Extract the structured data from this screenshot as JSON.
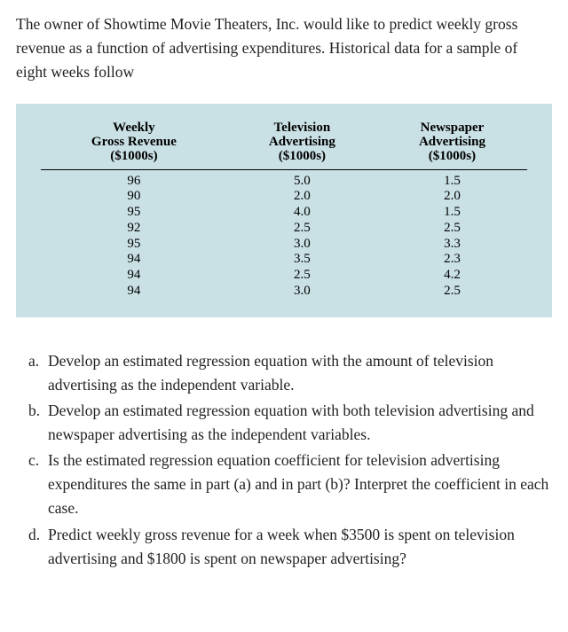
{
  "intro": "The owner of Showtime Movie Theaters, Inc. would like to predict weekly gross revenue as a function of advertising expenditures. Historical data for a sample of eight weeks follow",
  "table": {
    "columns": [
      {
        "l1": "Weekly",
        "l2": "Gross Revenue",
        "unit": "($1000s)"
      },
      {
        "l1": "Television",
        "l2": "Advertising",
        "unit": "($1000s)"
      },
      {
        "l1": "Newspaper",
        "l2": "Advertising",
        "unit": "($1000s)"
      }
    ],
    "rows": [
      [
        "96",
        "5.0",
        "1.5"
      ],
      [
        "90",
        "2.0",
        "2.0"
      ],
      [
        "95",
        "4.0",
        "1.5"
      ],
      [
        "92",
        "2.5",
        "2.5"
      ],
      [
        "95",
        "3.0",
        "3.3"
      ],
      [
        "94",
        "3.5",
        "2.3"
      ],
      [
        "94",
        "2.5",
        "4.2"
      ],
      [
        "94",
        "3.0",
        "2.5"
      ]
    ],
    "styling": {
      "background_color": "#c9e0e4",
      "text_color": "#000000",
      "header_border": "1px solid #000000",
      "font_family": "Times New Roman",
      "header_fontsize_pt": 12,
      "body_fontsize_pt": 12,
      "column_align": "center"
    }
  },
  "questions": [
    {
      "marker": "a.",
      "text": "Develop an estimated regression equation with the amount of television advertising as the independent variable."
    },
    {
      "marker": "b.",
      "text": "Develop an estimated regression equation with both television advertising and newspaper advertising as the independent variables."
    },
    {
      "marker": "c.",
      "text": "Is the estimated regression equation coefficient for television advertising expenditures the same in part (a) and in part (b)? Interpret the coefficient in each case."
    },
    {
      "marker": "d.",
      "text": "Predict weekly gross revenue for a week when $3500 is spent on television advertising and $1800 is spent on newspaper advertising?"
    }
  ]
}
